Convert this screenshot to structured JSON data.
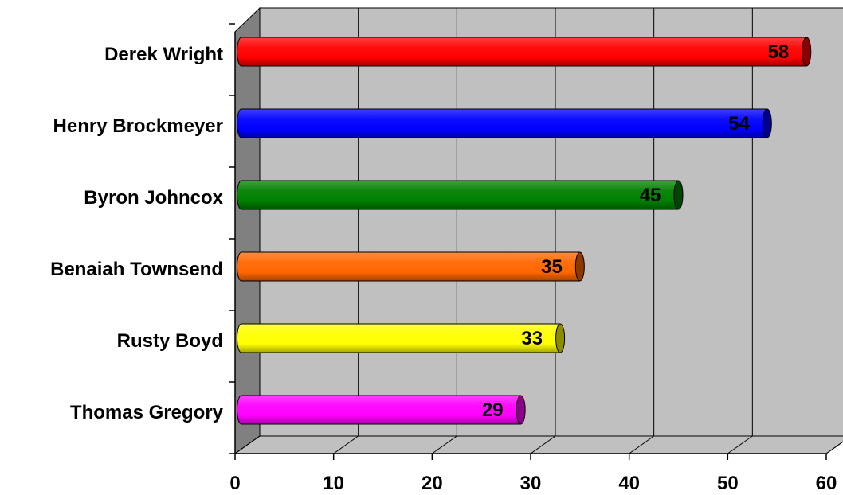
{
  "chart_data": {
    "type": "bar",
    "orientation": "horizontal",
    "style": "3d-cylinder",
    "title": "",
    "xlabel": "",
    "ylabel": "",
    "categories": [
      "Derek Wright",
      "Henry Brockmeyer",
      "Byron Johncox",
      "Benaiah Townsend",
      "Rusty Boyd",
      "Thomas Gregory"
    ],
    "values": [
      58,
      54,
      45,
      35,
      33,
      29
    ],
    "value_labels": [
      "58",
      "54",
      "45",
      "35",
      "33",
      "29"
    ],
    "colors": [
      "#ff0000",
      "#0000ff",
      "#008000",
      "#ff6600",
      "#ffff00",
      "#ff00ff"
    ],
    "xlim": [
      0,
      60
    ],
    "xticks": [
      0,
      10,
      20,
      30,
      40,
      50,
      60
    ],
    "xtick_labels": [
      "0",
      "10",
      "20",
      "30",
      "40",
      "50",
      "60"
    ],
    "grid": true,
    "plot_background": "#c0c0c0",
    "wall_color": "#808080",
    "legend": "none"
  }
}
